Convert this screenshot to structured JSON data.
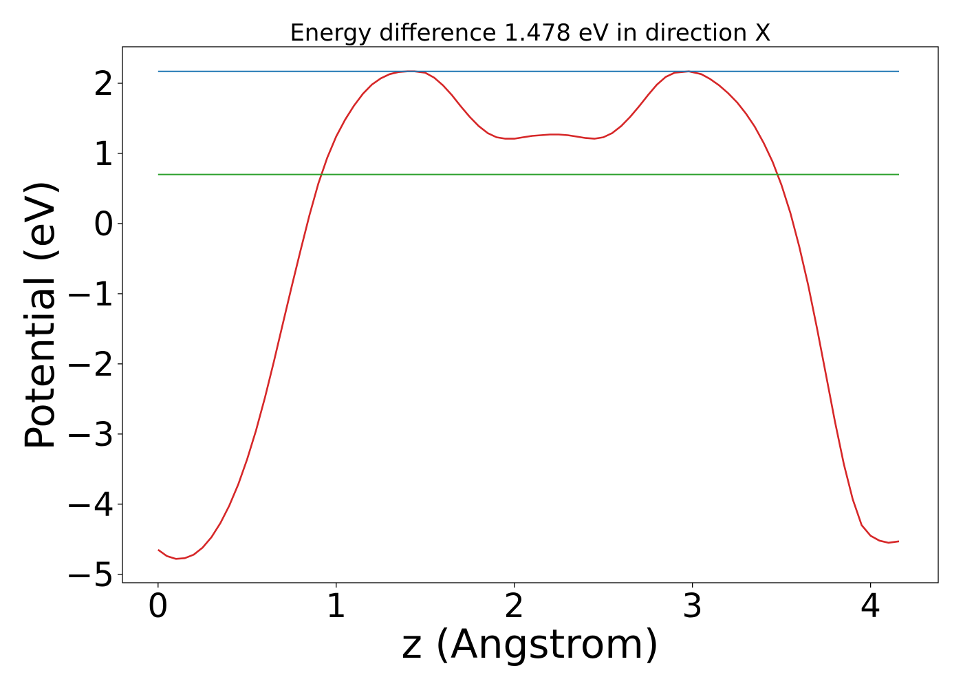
{
  "chart_data": {
    "type": "line",
    "title": "Energy difference 1.478 eV in direction X",
    "xlabel": "z (Angstrom)",
    "ylabel": "Potential (eV)",
    "xlim": [
      -0.2,
      4.38
    ],
    "ylim": [
      -5.12,
      2.52
    ],
    "xticks": [
      0,
      1,
      2,
      3,
      4
    ],
    "yticks": [
      -5,
      -4,
      -3,
      -2,
      -1,
      0,
      1,
      2
    ],
    "xtick_labels": [
      "0",
      "1",
      "2",
      "3",
      "4"
    ],
    "ytick_labels": [
      "−5",
      "−4",
      "−3",
      "−2",
      "−1",
      "0",
      "1",
      "2"
    ],
    "grid": false,
    "series": [
      {
        "color": "#d62728",
        "x": [
          0,
          0.05,
          0.1,
          0.15,
          0.2,
          0.25,
          0.3,
          0.35,
          0.4,
          0.45,
          0.5,
          0.55,
          0.6,
          0.65,
          0.7,
          0.75,
          0.8,
          0.85,
          0.9,
          0.95,
          1.0,
          1.05,
          1.1,
          1.15,
          1.2,
          1.25,
          1.3,
          1.35,
          1.4,
          1.44,
          1.5,
          1.55,
          1.6,
          1.65,
          1.7,
          1.75,
          1.8,
          1.85,
          1.9,
          1.95,
          2.0,
          2.05,
          2.1,
          2.15,
          2.2,
          2.25,
          2.3,
          2.35,
          2.4,
          2.45,
          2.5,
          2.55,
          2.6,
          2.65,
          2.7,
          2.75,
          2.8,
          2.85,
          2.9,
          2.98,
          3.05,
          3.1,
          3.15,
          3.2,
          3.25,
          3.3,
          3.35,
          3.4,
          3.45,
          3.5,
          3.55,
          3.6,
          3.65,
          3.7,
          3.75,
          3.8,
          3.85,
          3.9,
          3.95,
          4.0,
          4.05,
          4.1,
          4.16
        ],
        "y": [
          -4.65,
          -4.74,
          -4.78,
          -4.77,
          -4.72,
          -4.62,
          -4.47,
          -4.27,
          -4.02,
          -3.72,
          -3.36,
          -2.95,
          -2.48,
          -1.97,
          -1.43,
          -0.9,
          -0.38,
          0.12,
          0.57,
          0.94,
          1.24,
          1.48,
          1.68,
          1.85,
          1.98,
          2.07,
          2.13,
          2.16,
          2.17,
          2.17,
          2.15,
          2.08,
          1.97,
          1.83,
          1.67,
          1.52,
          1.39,
          1.29,
          1.23,
          1.21,
          1.21,
          1.23,
          1.25,
          1.26,
          1.27,
          1.27,
          1.26,
          1.24,
          1.22,
          1.21,
          1.23,
          1.29,
          1.39,
          1.52,
          1.67,
          1.83,
          1.98,
          2.09,
          2.15,
          2.17,
          2.13,
          2.06,
          1.97,
          1.86,
          1.73,
          1.57,
          1.38,
          1.15,
          0.88,
          0.55,
          0.15,
          -0.33,
          -0.88,
          -1.5,
          -2.16,
          -2.82,
          -3.43,
          -3.93,
          -4.3,
          -4.45,
          -4.52,
          -4.55,
          -4.53
        ]
      },
      {
        "color": "#1f77b4",
        "x": [
          0,
          4.16
        ],
        "y": [
          2.17,
          2.17
        ]
      },
      {
        "color": "#2ca02c",
        "x": [
          0,
          4.16
        ],
        "y": [
          0.7,
          0.7
        ]
      }
    ]
  }
}
